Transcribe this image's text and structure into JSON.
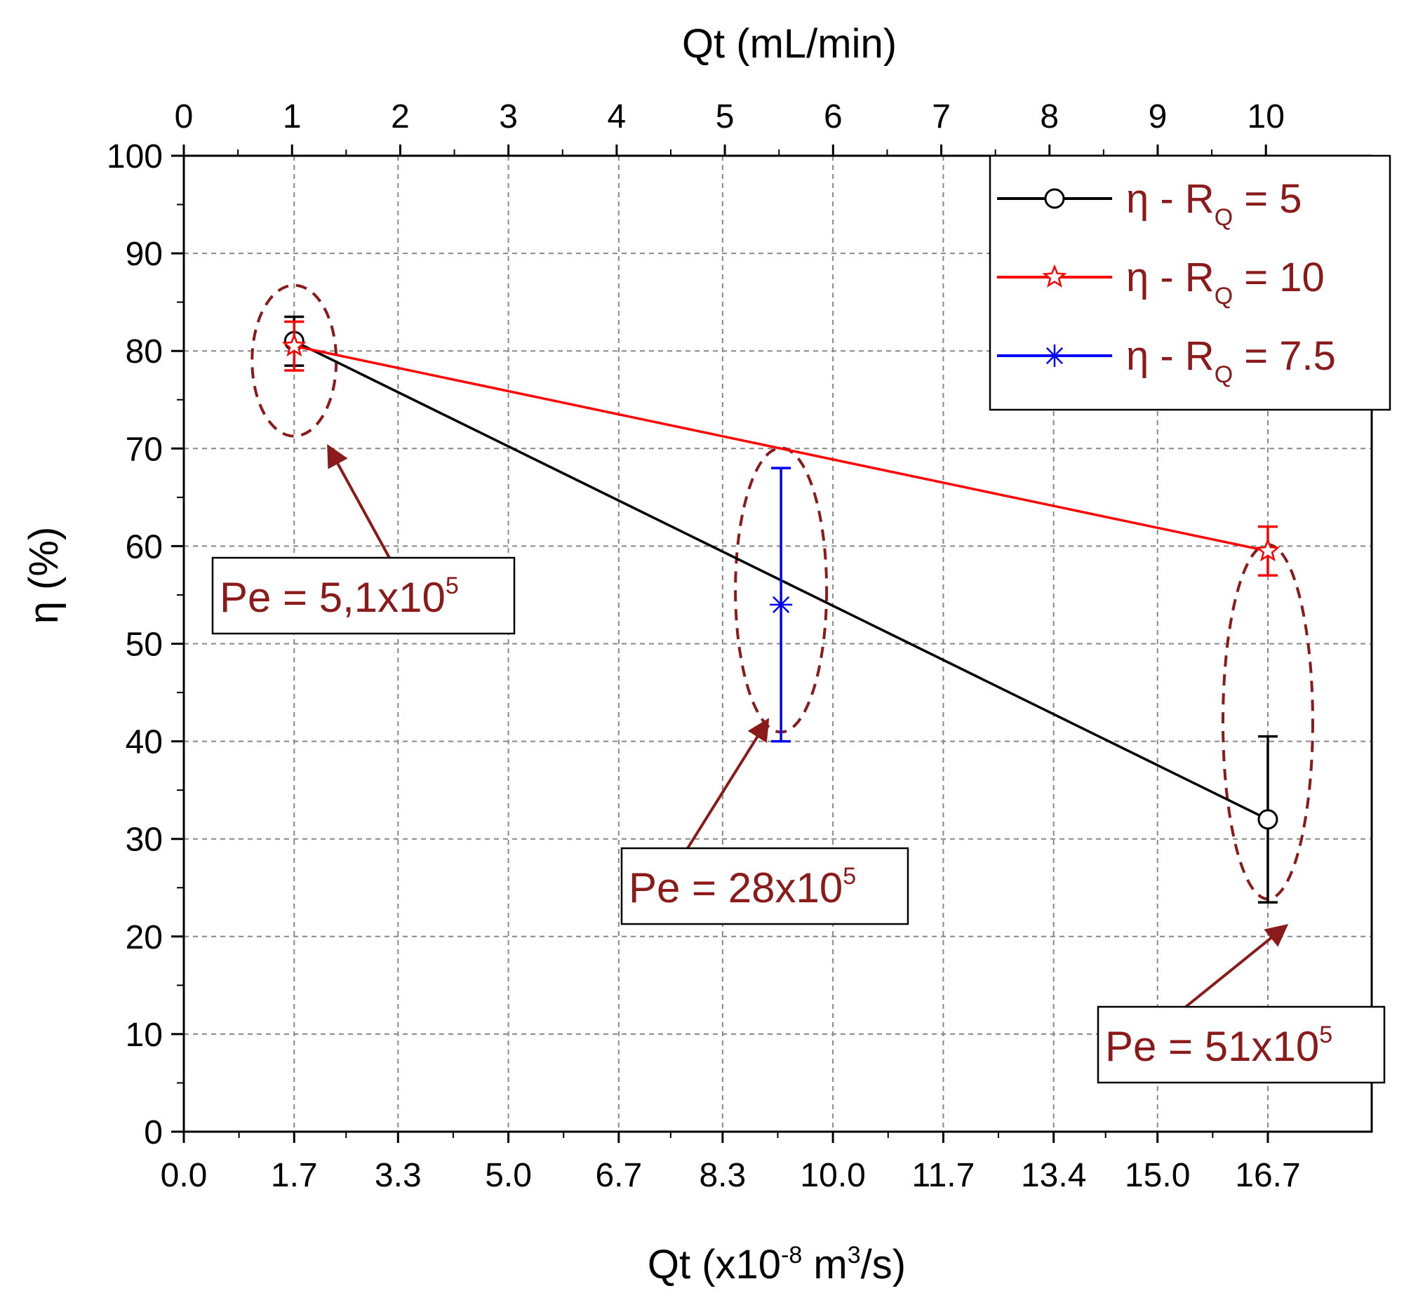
{
  "chart_data": {
    "type": "line",
    "x": [
      1.7,
      9.2,
      16.7
    ],
    "x_top": {
      "label": "Qt (mL/min)",
      "ticks": [
        0,
        1,
        2,
        3,
        4,
        5,
        6,
        7,
        8,
        9,
        10
      ],
      "scale_factor": 1.667
    },
    "x_bottom": {
      "label_prefix": "Qt (x10",
      "label_exp": "-8",
      "label_mid": " m",
      "label_exp2": "3",
      "label_suffix": "/s)",
      "ticks": [
        "0.0",
        "1.7",
        "3.3",
        "5.0",
        "6.7",
        "8.3",
        "10.0",
        "11.7",
        "13.4",
        "15.0",
        "16.7"
      ]
    },
    "ylabel": "η (%)",
    "yticks": [
      "0",
      "10",
      "20",
      "30",
      "40",
      "50",
      "60",
      "70",
      "80",
      "90",
      "100"
    ],
    "ylim": [
      0,
      100
    ],
    "xlim": [
      0,
      18.3
    ],
    "series": [
      {
        "name_prefix": "η - R",
        "name_sub": "Q",
        "name_suffix": " = 5",
        "color": "#000000",
        "marker": "circle",
        "x": [
          1.7,
          16.7
        ],
        "values": [
          81,
          32
        ],
        "err_low": [
          78.5,
          23.5
        ],
        "err_high": [
          83.5,
          40.5
        ]
      },
      {
        "name_prefix": "η - R",
        "name_sub": "Q",
        "name_suffix": " = 10",
        "color": "#ff0000",
        "marker": "star",
        "x": [
          1.7,
          16.7
        ],
        "values": [
          80.5,
          59.5
        ],
        "err_low": [
          78,
          57
        ],
        "err_high": [
          83,
          62
        ]
      },
      {
        "name_prefix": "η - R",
        "name_sub": "Q",
        "name_suffix": " = 7.5",
        "color": "#0000ff",
        "marker": "asterisk",
        "x": [
          9.2
        ],
        "values": [
          54
        ],
        "err_low": [
          40
        ],
        "err_high": [
          68
        ]
      }
    ],
    "annotations": [
      {
        "prefix": "Pe = 5,1x10",
        "exp": "5"
      },
      {
        "prefix": "Pe = 28x10",
        "exp": "5"
      },
      {
        "prefix": "Pe = 51x10",
        "exp": "5"
      }
    ],
    "annotation_color": "#8b1a1a",
    "grid": true,
    "legend": "top-right"
  }
}
